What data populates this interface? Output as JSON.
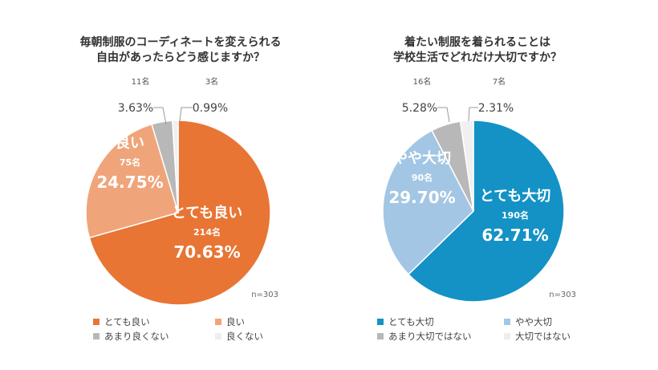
{
  "chart_data": [
    {
      "type": "pie",
      "title_lines": [
        "毎朝制服のコーディネートを変えられる",
        "自由があったらどう感じますか？"
      ],
      "n_label": "n=303",
      "categories": [
        "とても良い",
        "良い",
        "あまり良くない",
        "良くない"
      ],
      "counts": [
        "214名",
        "75名",
        "11名",
        "3名"
      ],
      "values": [
        70.63,
        24.75,
        3.63,
        0.99
      ],
      "percent_labels": [
        "70.63%",
        "24.75%",
        "3.63%",
        "0.99%"
      ],
      "colors": [
        "#E87534",
        "#F0A47A",
        "#B8B8B8",
        "#F0F0F0"
      ],
      "legend_placement": "bottom"
    },
    {
      "type": "pie",
      "title_lines": [
        "着たい制服を着られることは",
        "学校生活でどれだけ大切ですか？"
      ],
      "n_label": "n=303",
      "categories": [
        "とても大切",
        "やや大切",
        "あまり大切ではない",
        "大切ではない"
      ],
      "counts": [
        "190名",
        "90名",
        "16名",
        "7名"
      ],
      "values": [
        62.71,
        29.7,
        5.28,
        2.31
      ],
      "percent_labels": [
        "62.71%",
        "29.70%",
        "5.28%",
        "2.31%"
      ],
      "colors": [
        "#1492C6",
        "#A3C6E4",
        "#B8B8B8",
        "#F0F0F0"
      ],
      "legend_placement": "bottom"
    }
  ]
}
